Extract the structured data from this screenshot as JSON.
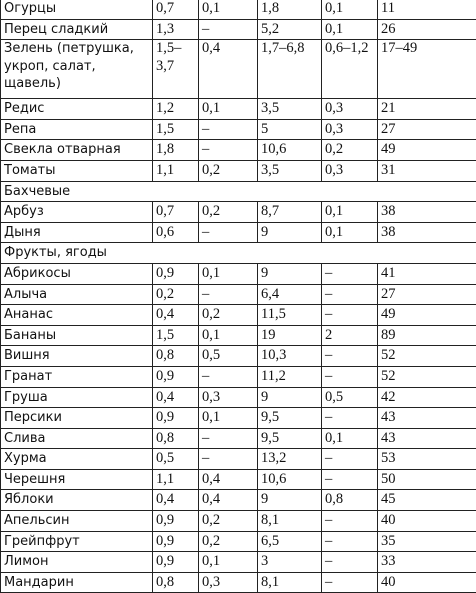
{
  "rows": [
    {
      "type": "row",
      "cells": [
        "Огурцы",
        "0,7",
        "0,1",
        "1,8",
        "0,1",
        "11"
      ]
    },
    {
      "type": "row",
      "cells": [
        "Перец сладкий",
        "1,3",
        "–",
        "5,2",
        "0,1",
        "26"
      ]
    },
    {
      "type": "row",
      "multi": true,
      "cells": [
        "Зелень (петрушка, укроп, салат, щавель)",
        "1,5–3,7",
        "0,4",
        "1,7–6,8",
        "0,6–1,2",
        "17–49"
      ]
    },
    {
      "type": "row",
      "cells": [
        "Редис",
        "1,2",
        "0,1",
        "3,5",
        "0,3",
        "21"
      ]
    },
    {
      "type": "row",
      "cells": [
        "Репа",
        "1,5",
        "–",
        "5",
        "0,3",
        "27"
      ]
    },
    {
      "type": "row",
      "cells": [
        "Свекла отварная",
        "1,8",
        "–",
        "10,6",
        "0,2",
        "49"
      ]
    },
    {
      "type": "row",
      "cells": [
        "Томаты",
        "1,1",
        "0,2",
        "3,5",
        "0,3",
        "31"
      ]
    },
    {
      "type": "section",
      "label": "Бахчевые"
    },
    {
      "type": "row",
      "cells": [
        "Арбуз",
        "0,7",
        "0,2",
        "8,7",
        "0,1",
        "38"
      ]
    },
    {
      "type": "row",
      "cells": [
        "Дыня",
        "0,6",
        "–",
        "9",
        "0,1",
        "38"
      ]
    },
    {
      "type": "section",
      "label": "Фрукты, ягоды"
    },
    {
      "type": "row",
      "cells": [
        "Абрикосы",
        "0,9",
        "0,1",
        "9",
        "–",
        "41"
      ]
    },
    {
      "type": "row",
      "cells": [
        "Алыча",
        "0,2",
        "–",
        "6,4",
        "–",
        "27"
      ]
    },
    {
      "type": "row",
      "cells": [
        "Ананас",
        "0,4",
        "0,2",
        "11,5",
        "–",
        "49"
      ]
    },
    {
      "type": "row",
      "cells": [
        "Бананы",
        "1,5",
        "0,1",
        "19",
        "2",
        "89"
      ]
    },
    {
      "type": "row",
      "cells": [
        "Вишня",
        "0,8",
        "0,5",
        "10,3",
        "–",
        "52"
      ]
    },
    {
      "type": "row",
      "cells": [
        "Гранат",
        "0,9",
        "–",
        "11,2",
        "–",
        "52"
      ]
    },
    {
      "type": "row",
      "cells": [
        "Груша",
        "0,4",
        "0,3",
        "9",
        "0,5",
        "42"
      ]
    },
    {
      "type": "row",
      "cells": [
        "Персики",
        "0,9",
        "0,1",
        "9,5",
        "–",
        "43"
      ]
    },
    {
      "type": "row",
      "cells": [
        "Слива",
        "0,8",
        "–",
        "9,5",
        "0,1",
        "43"
      ]
    },
    {
      "type": "row",
      "cells": [
        "Хурма",
        "0,5",
        "–",
        "13,2",
        "–",
        "53"
      ]
    },
    {
      "type": "row",
      "cells": [
        "Черешня",
        "1,1",
        "0,4",
        "10,6",
        "–",
        "50"
      ]
    },
    {
      "type": "row",
      "cells": [
        "Яблоки",
        "0,4",
        "0,4",
        "9",
        "0,8",
        "45"
      ]
    },
    {
      "type": "row",
      "cells": [
        "Апельсин",
        "0,9",
        "0,2",
        "8,1",
        "–",
        "40"
      ]
    },
    {
      "type": "row",
      "cells": [
        "Грейпфрут",
        "0,9",
        "0,2",
        "6,5",
        "–",
        "35"
      ]
    },
    {
      "type": "row",
      "cells": [
        "Лимон",
        "0,9",
        "0,1",
        "3",
        "–",
        "33"
      ]
    },
    {
      "type": "row",
      "cells": [
        "Мандарин",
        "0,8",
        "0,3",
        "8,1",
        "–",
        "40"
      ]
    }
  ]
}
